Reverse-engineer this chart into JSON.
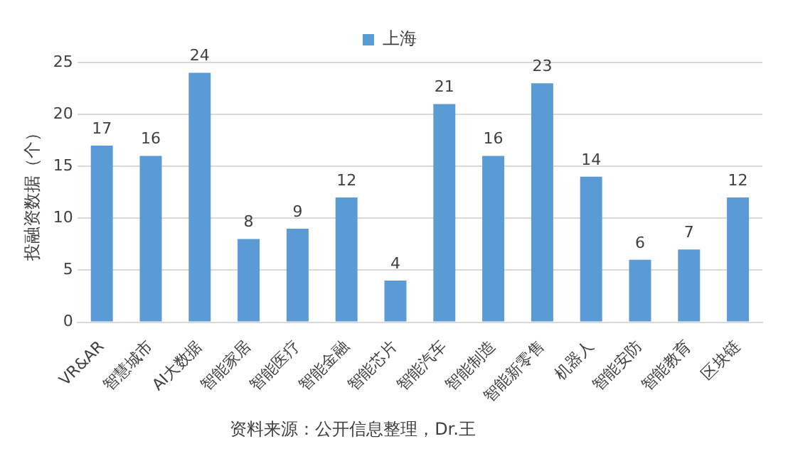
{
  "chart_data": {
    "type": "bar",
    "ylabel": "投融资数据（个）",
    "categories": [
      "VR&AR",
      "智慧城市",
      "AI大数据",
      "智能家居",
      "智能医疗",
      "智能金融",
      "智能芯片",
      "智能汽车",
      "智能制造",
      "智能新零售",
      "机器人",
      "智能安防",
      "智能教育",
      "区块链"
    ],
    "series": [
      {
        "name": "上海",
        "color": "#5b9bd5",
        "values": [
          17,
          16,
          24,
          8,
          9,
          12,
          4,
          21,
          16,
          23,
          14,
          6,
          7,
          12
        ]
      }
    ],
    "ylim": [
      0,
      25
    ],
    "yticks": [
      0,
      5,
      10,
      15,
      20,
      25
    ],
    "grid": "y",
    "legend": "top",
    "data_labels": true,
    "annotations": [
      "资料来源：公开信息整理，Dr.王"
    ]
  }
}
